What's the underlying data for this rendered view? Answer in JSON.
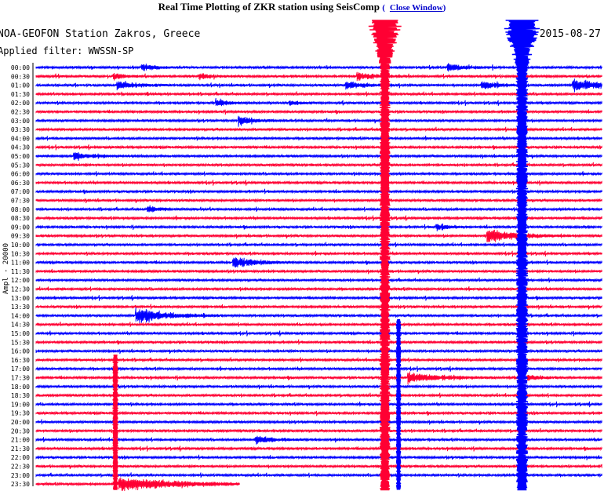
{
  "header": {
    "title": "Real Time Plotting of ZKR station using SeisComp",
    "close_link": "Close Window"
  },
  "chart_data": {
    "type": "line",
    "title": "NOA-GEOFON Station Zakros, Greece",
    "date": "2015-08-27",
    "filter_text": "Applied filter: WWSSN-SP",
    "ylabel": "Ampl - 20000",
    "row_labels": [
      "00:00",
      "00:30",
      "01:00",
      "01:30",
      "02:00",
      "02:30",
      "03:00",
      "03:30",
      "04:00",
      "04:30",
      "05:00",
      "05:30",
      "06:00",
      "06:30",
      "07:00",
      "07:30",
      "08:00",
      "08:30",
      "09:00",
      "09:30",
      "10:00",
      "10:30",
      "11:00",
      "11:30",
      "12:00",
      "12:30",
      "13:00",
      "13:30",
      "14:00",
      "14:30",
      "15:00",
      "15:30",
      "16:00",
      "16:30",
      "17:00",
      "17:30",
      "18:00",
      "18:30",
      "19:00",
      "19:30",
      "20:00",
      "20:30",
      "21:00",
      "21:30",
      "22:00",
      "22:30",
      "23:00",
      "23:30"
    ],
    "trace_colors": [
      "#0000ff",
      "#ff0033"
    ],
    "events": [
      {
        "row": 0,
        "t": 0.19,
        "amp": 3,
        "dur": 0.02
      },
      {
        "row": 0,
        "t": 0.73,
        "amp": 3,
        "dur": 0.03
      },
      {
        "row": 1,
        "t": 0.14,
        "amp": 2.5,
        "dur": 0.02
      },
      {
        "row": 1,
        "t": 0.29,
        "amp": 2.5,
        "dur": 0.02
      },
      {
        "row": 1,
        "t": 0.57,
        "amp": 3,
        "dur": 0.03
      },
      {
        "row": 2,
        "t": 0.146,
        "amp": 4,
        "dur": 0.03
      },
      {
        "row": 2,
        "t": 0.55,
        "amp": 4,
        "dur": 0.03
      },
      {
        "row": 2,
        "t": 0.79,
        "amp": 4,
        "dur": 0.025
      },
      {
        "row": 2,
        "t": 0.95,
        "amp": 5,
        "dur": 0.05
      },
      {
        "row": 4,
        "t": 0.32,
        "amp": 3,
        "dur": 0.02
      },
      {
        "row": 4,
        "t": 0.45,
        "amp": 2,
        "dur": 0.02
      },
      {
        "row": 6,
        "t": 0.36,
        "amp": 3.5,
        "dur": 0.03
      },
      {
        "row": 10,
        "t": 0.07,
        "amp": 3,
        "dur": 0.03
      },
      {
        "row": 16,
        "t": 0.2,
        "amp": 2.5,
        "dur": 0.02
      },
      {
        "row": 18,
        "t": 0.71,
        "amp": 3,
        "dur": 0.02
      },
      {
        "row": 19,
        "t": 0.8,
        "amp": 6,
        "dur": 0.05
      },
      {
        "row": 22,
        "t": 0.35,
        "amp": 5,
        "dur": 0.04
      },
      {
        "row": 28,
        "t": 0.18,
        "amp": 7,
        "dur": 0.05
      },
      {
        "row": 35,
        "t": 0.66,
        "amp": 5,
        "dur": 0.05
      },
      {
        "row": 35,
        "t": 0.87,
        "amp": 3,
        "dur": 0.02
      },
      {
        "row": 42,
        "t": 0.39,
        "amp": 3.5,
        "dur": 0.03
      },
      {
        "row": 47,
        "t": 0.15,
        "amp": 6,
        "dur": 0.1
      }
    ],
    "saturated_columns": [
      {
        "x": 0.616,
        "row_start": 0,
        "row_end": 47,
        "color": "#ff0033",
        "width": 0.015
      },
      {
        "x": 0.858,
        "row_start": 0,
        "row_end": 47,
        "color": "#0000ff",
        "width": 0.017
      },
      {
        "x": 0.64,
        "row_start": 29,
        "row_end": 47,
        "color": "#0000ff",
        "width": 0.007
      },
      {
        "x": 0.14,
        "row_start": 33,
        "row_end": 47,
        "color": "#ff0033",
        "width": 0.008
      }
    ],
    "grid": false
  }
}
